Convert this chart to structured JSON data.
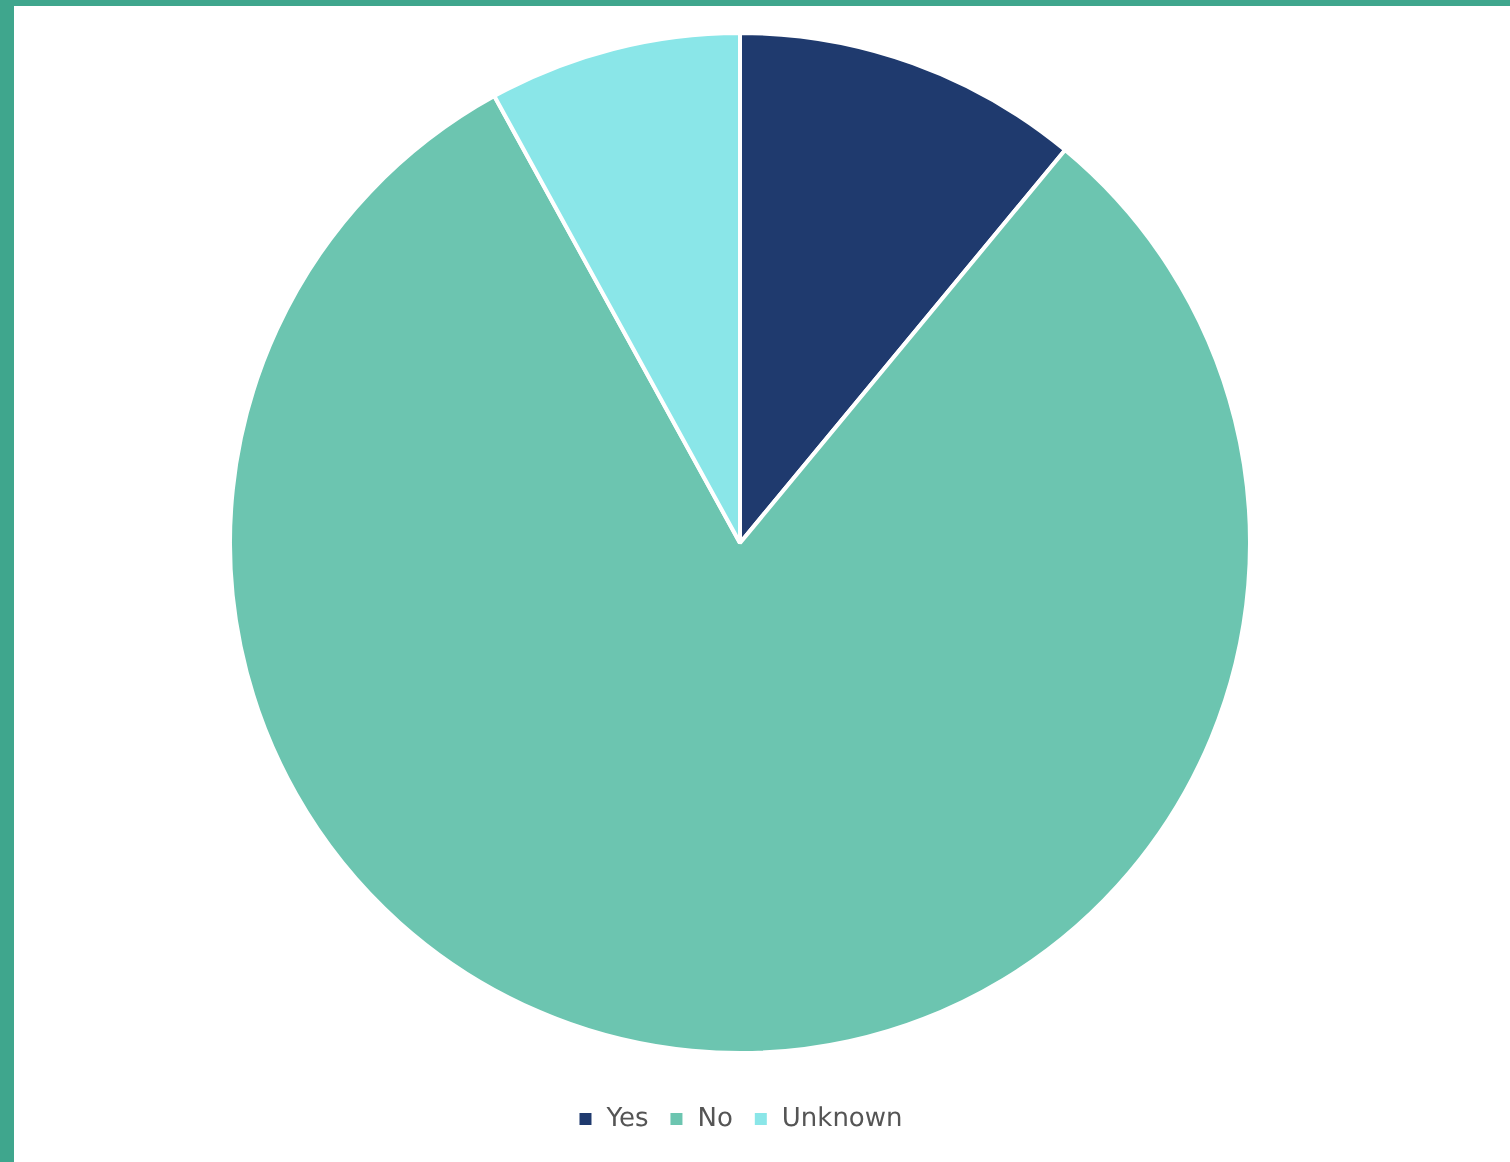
{
  "chart_data": {
    "type": "pie",
    "categories": [
      "Yes",
      "No",
      "Unknown"
    ],
    "values": [
      11,
      81,
      8
    ],
    "colors": [
      "#1f3a6e",
      "#6cc5b0",
      "#8ae6e8"
    ],
    "legend": "bottom"
  }
}
